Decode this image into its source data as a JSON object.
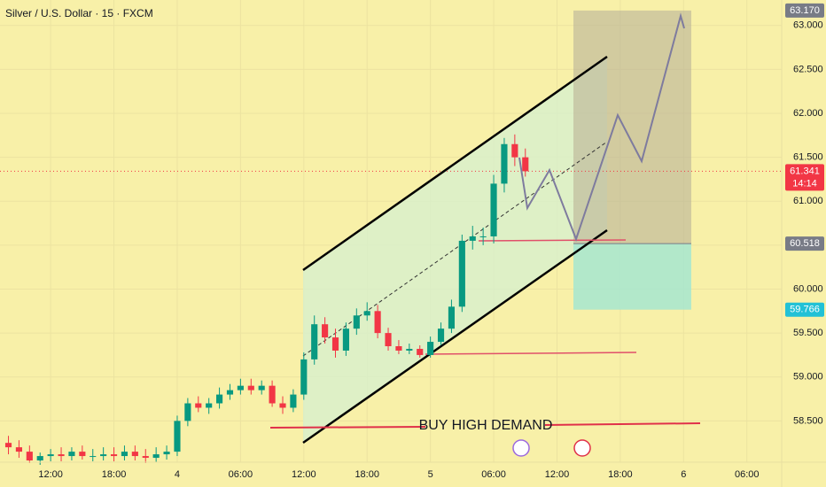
{
  "chart_data": {
    "type": "candlestick",
    "title": "Silver / U.S. Dollar · 15 · FXCM",
    "annotation": "BUY HIGH DEMAND",
    "up_color": "#089981",
    "down_color": "#f23645",
    "x": [
      8,
      9,
      10,
      11,
      12,
      13,
      14,
      15,
      16,
      17,
      18,
      19,
      20,
      21,
      22,
      23,
      24,
      25,
      26,
      27,
      28,
      29,
      30,
      31,
      32,
      33,
      34,
      35,
      36,
      37,
      38,
      39,
      40,
      41,
      42,
      43,
      44,
      45,
      46,
      47,
      48,
      49,
      50,
      51,
      52,
      53,
      54,
      55,
      56,
      57
    ],
    "open": [
      58.25,
      58.2,
      58.15,
      58.05,
      58.1,
      58.12,
      58.1,
      58.15,
      58.1,
      58.1,
      58.12,
      58.1,
      58.15,
      58.1,
      58.08,
      58.12,
      58.15,
      58.5,
      58.7,
      58.65,
      58.7,
      58.8,
      58.85,
      58.9,
      58.85,
      58.9,
      58.7,
      58.65,
      58.8,
      59.2,
      59.6,
      59.45,
      59.3,
      59.55,
      59.7,
      59.75,
      59.5,
      59.35,
      59.3,
      59.32,
      59.25,
      59.4,
      59.55,
      59.8,
      60.55,
      60.6,
      60.6,
      61.2,
      61.65,
      61.5
    ],
    "high": [
      58.33,
      58.28,
      58.22,
      58.14,
      58.18,
      58.2,
      58.2,
      58.22,
      58.18,
      58.2,
      58.2,
      58.22,
      58.22,
      58.18,
      58.2,
      58.22,
      58.56,
      58.76,
      58.78,
      58.76,
      58.88,
      58.92,
      58.98,
      58.98,
      58.96,
      58.96,
      58.78,
      58.86,
      59.28,
      59.7,
      59.68,
      59.55,
      59.62,
      59.78,
      59.85,
      59.82,
      59.56,
      59.42,
      59.38,
      59.36,
      59.46,
      59.62,
      59.88,
      60.62,
      60.72,
      60.7,
      61.3,
      61.72,
      61.76,
      61.6
    ],
    "low": [
      58.12,
      58.08,
      58.02,
      58.0,
      58.04,
      58.04,
      58.05,
      58.06,
      58.04,
      58.05,
      58.04,
      58.05,
      58.05,
      58.02,
      58.03,
      58.06,
      58.1,
      58.44,
      58.6,
      58.58,
      58.64,
      58.74,
      58.8,
      58.8,
      58.8,
      58.66,
      58.58,
      58.6,
      58.74,
      59.14,
      59.38,
      59.22,
      59.24,
      59.48,
      59.64,
      59.44,
      59.3,
      59.26,
      59.26,
      59.22,
      59.22,
      59.36,
      59.5,
      59.74,
      60.45,
      60.5,
      60.52,
      61.1,
      61.4,
      61.28
    ],
    "close": [
      58.2,
      58.15,
      58.05,
      58.1,
      58.12,
      58.1,
      58.15,
      58.1,
      58.1,
      58.12,
      58.1,
      58.15,
      58.1,
      58.08,
      58.12,
      58.15,
      58.5,
      58.7,
      58.65,
      58.7,
      58.8,
      58.85,
      58.9,
      58.85,
      58.9,
      58.7,
      58.65,
      58.8,
      59.2,
      59.6,
      59.45,
      59.3,
      59.55,
      59.7,
      59.75,
      59.5,
      59.35,
      59.3,
      59.32,
      59.25,
      59.4,
      59.55,
      59.8,
      60.55,
      60.6,
      60.6,
      61.2,
      61.65,
      61.5,
      61.341
    ],
    "xlim": [
      7.2,
      81.3
    ],
    "xticks": [
      {
        "value": 12,
        "label": "12:00"
      },
      {
        "value": 18,
        "label": "18:00"
      },
      {
        "value": 24,
        "label": "4"
      },
      {
        "value": 30,
        "label": "06:00"
      },
      {
        "value": 36,
        "label": "12:00"
      },
      {
        "value": 42,
        "label": "18:00"
      },
      {
        "value": 48,
        "label": "5"
      },
      {
        "value": 54,
        "label": "06:00"
      },
      {
        "value": 60,
        "label": "12:00"
      },
      {
        "value": 66,
        "label": "18:00"
      },
      {
        "value": 72,
        "label": "6"
      },
      {
        "value": 78,
        "label": "06:00"
      }
    ],
    "ylim": [
      58.03,
      63.29
    ],
    "yticks": [
      {
        "value": 58.5,
        "label": "58.500"
      },
      {
        "value": 59,
        "label": "59.000"
      },
      {
        "value": 59.5,
        "label": "59.500"
      },
      {
        "value": 60,
        "label": "60.000"
      },
      {
        "value": 60.5,
        "label": "60.500"
      },
      {
        "value": 61,
        "label": "61.000"
      },
      {
        "value": 61.5,
        "label": "61.500"
      },
      {
        "value": 62,
        "label": "62.000"
      },
      {
        "value": 62.5,
        "label": "62.500"
      },
      {
        "value": 63,
        "label": "63.000"
      }
    ],
    "grid": true,
    "price_labels": [
      {
        "value": 63.17,
        "label": "63.170",
        "color": "#787b86"
      },
      {
        "value": 61.341,
        "label": "61.341",
        "color": "#f23645",
        "countdown": "14:14"
      },
      {
        "value": 60.518,
        "label": "60.518",
        "color": "#787b86"
      },
      {
        "value": 59.766,
        "label": "59.766",
        "color": "#22c1d6"
      }
    ]
  }
}
